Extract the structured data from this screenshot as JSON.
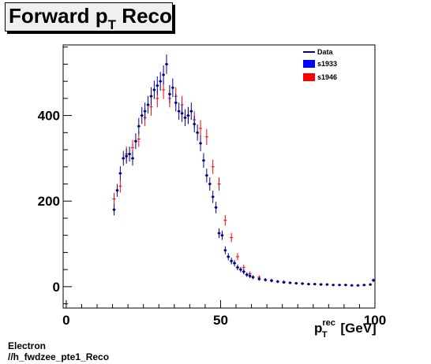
{
  "title": {
    "main": "Forward p",
    "sub": "T",
    "rest": " Reco"
  },
  "footer": {
    "line1": "Electron",
    "line2": "//h_fwdzee_pte1_Reco"
  },
  "colors": {
    "data": "#00008b",
    "s1933": "#0000ff",
    "s1946": "#ff0000"
  },
  "chart_data": {
    "type": "scatter",
    "xlim": [
      -1,
      100
    ],
    "ylim": [
      -50,
      565
    ],
    "xticks": [
      0,
      50,
      100
    ],
    "yticks": [
      0,
      200,
      400
    ],
    "xlabel": {
      "base": "p",
      "sup": "rec",
      "sub": "T",
      "unit": " [GeV]"
    },
    "ylabel": "",
    "grid": false,
    "legend_position": "top-right",
    "legend": [
      "Data",
      "s1933",
      "s1946"
    ],
    "series": [
      {
        "name": "Data",
        "x": [
          15.5,
          16.5,
          17.5,
          18.5,
          19.5,
          20.5,
          21.5,
          22.5,
          23.5,
          24.5,
          25.5,
          26.5,
          27.5,
          28.5,
          29.5,
          30.5,
          31.5,
          32.5,
          33.5,
          34.5,
          35.5,
          36.5,
          37.5,
          38.5,
          39.5,
          40.5,
          41.5,
          42.5,
          43.5,
          44.5,
          45.5,
          46.5,
          47.5,
          48.5,
          49.5,
          50.5,
          51.5,
          52.5,
          53.5,
          54.5,
          55.5,
          56.5,
          57.5,
          58.5,
          59.5,
          60.5,
          62.5,
          64.5,
          66.5,
          68.5,
          70.5,
          72.5,
          74.5,
          76.5,
          78.5,
          80.5,
          82.5,
          84.5,
          86.5,
          88.5,
          90.5,
          92.5,
          94.5,
          96.5,
          98.5,
          99.5
        ],
        "y": [
          180,
          225,
          265,
          300,
          305,
          310,
          300,
          340,
          375,
          400,
          410,
          425,
          445,
          460,
          470,
          480,
          495,
          520,
          450,
          465,
          430,
          410,
          405,
          395,
          400,
          410,
          380,
          360,
          335,
          295,
          260,
          240,
          210,
          185,
          125,
          120,
          85,
          70,
          60,
          55,
          45,
          40,
          35,
          28,
          25,
          22,
          18,
          16,
          14,
          12,
          10,
          9,
          8,
          7,
          6,
          6,
          5,
          5,
          4,
          4,
          4,
          3,
          3,
          4,
          5,
          15
        ]
      },
      {
        "name": "s1946",
        "x": [
          15.5,
          17.5,
          19.5,
          21.5,
          23.5,
          25.5,
          27.5,
          29.5,
          31.5,
          33.5,
          35.5,
          37.5,
          39.5,
          41.5,
          43.5,
          45.5,
          47.5,
          49.5,
          51.5,
          53.5,
          55.5,
          57.5,
          59.5,
          62.5,
          66.5,
          70.5,
          76.5,
          82.5,
          90.5,
          96.5
        ],
        "y": [
          205,
          235,
          310,
          325,
          345,
          395,
          420,
          440,
          460,
          440,
          445,
          425,
          400,
          390,
          370,
          350,
          280,
          240,
          155,
          115,
          70,
          45,
          30,
          22,
          15,
          12,
          8,
          6,
          4,
          3
        ]
      }
    ]
  }
}
